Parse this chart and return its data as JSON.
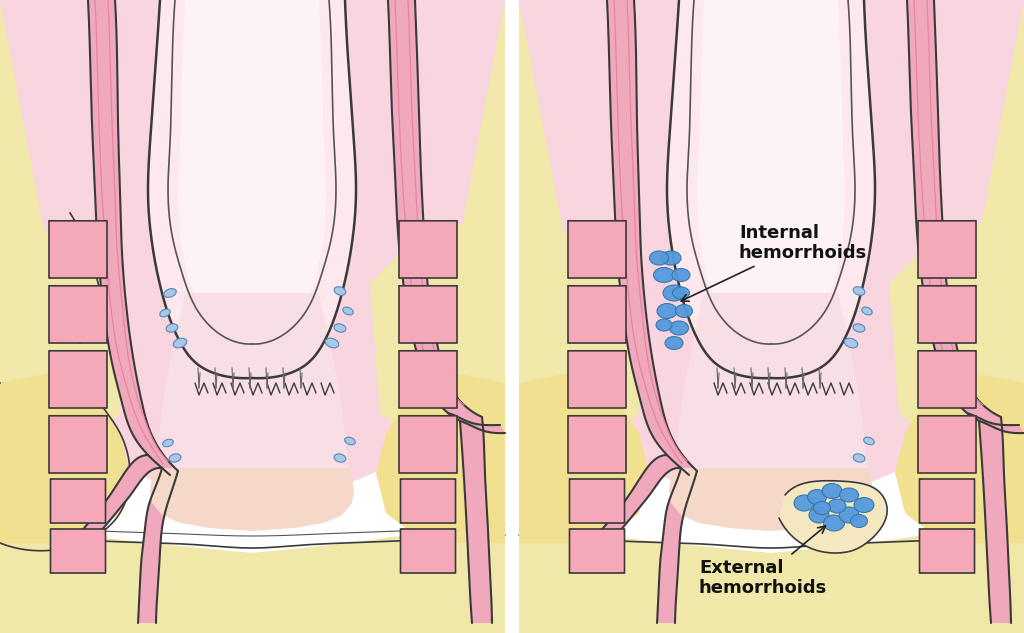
{
  "bg_color": "#ffffff",
  "pink_body": "#f9d0dc",
  "pink_vessel": "#e8849c",
  "pink_vessel_fill": "#f0a8bc",
  "pink_highlight": "#fce8ee",
  "yellow_tissue": "#f0e8a8",
  "yellow_skin": "#f0e090",
  "pink_sphincter": "#e88098",
  "pink_sphincter_fill": "#f4a8b8",
  "pink_anal": "#f8c8c0",
  "outline_dark": "#3a3a3a",
  "outline_med": "#555555",
  "blue_vessel": "#6699cc",
  "blue_vessel_fill": "#88bbee",
  "blue_hemorrhoid": "#5599dd",
  "white_bg": "#ffffff",
  "label_internal": "Internal\nhemorrhoids",
  "label_external": "External\nhemorrhoids",
  "font_size": 13,
  "left_bg_pink": "#fce4ec",
  "right_bg_pink": "#fce4ec"
}
